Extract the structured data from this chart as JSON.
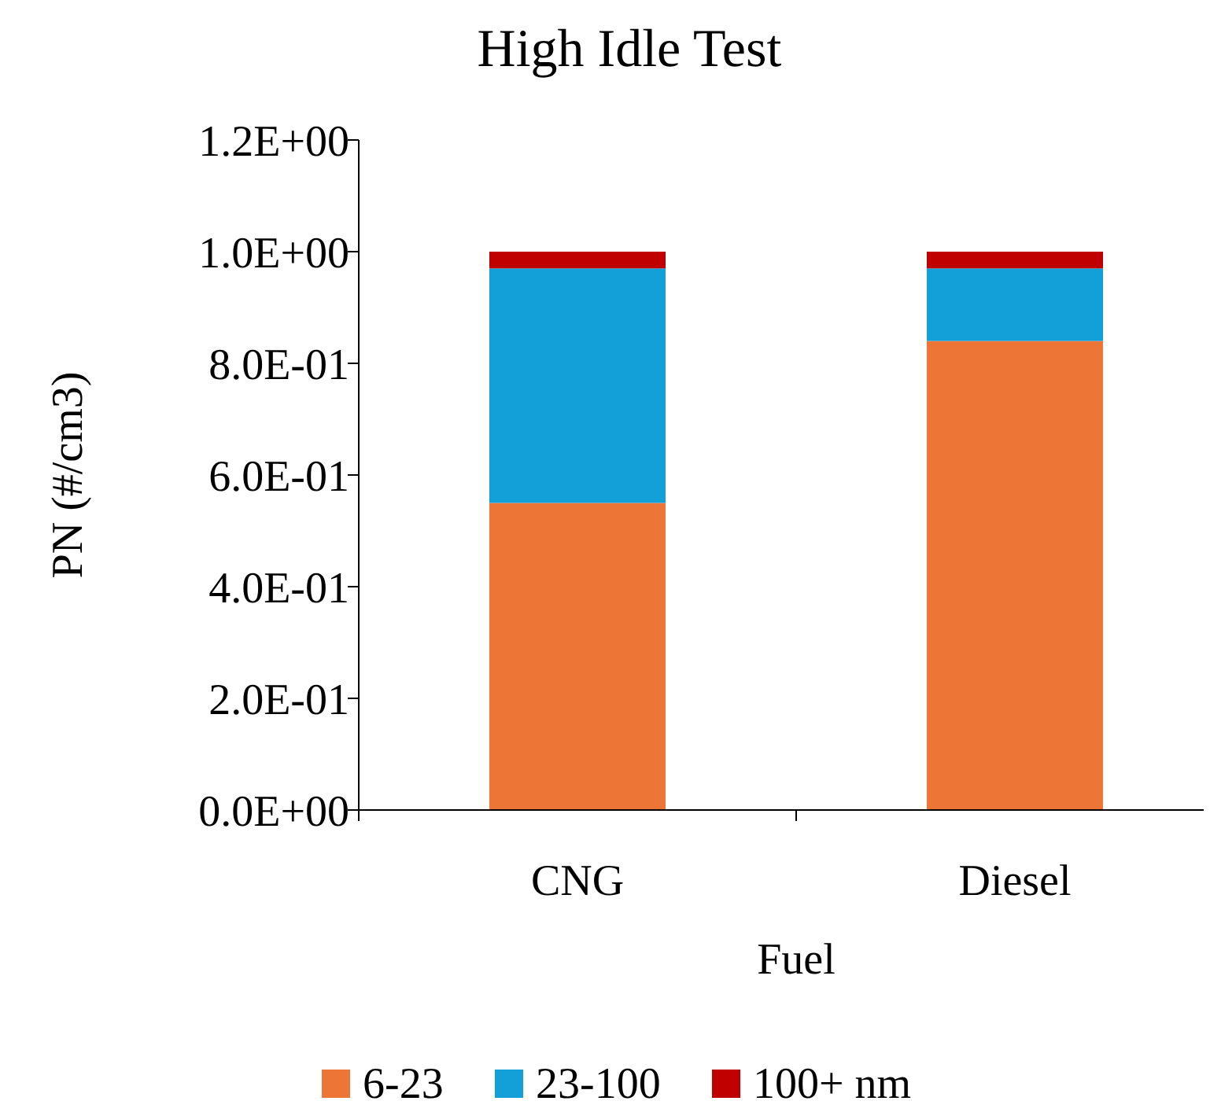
{
  "chart_data": {
    "type": "bar",
    "title": "High Idle Test",
    "xlabel": "Fuel",
    "ylabel": "PN (#/cm3)",
    "categories": [
      "CNG",
      "Diesel"
    ],
    "stacked": true,
    "legend": "bottom",
    "grid": false,
    "series": [
      {
        "name": "6-23",
        "color": "#ed7536",
        "values": [
          0.55,
          0.84
        ]
      },
      {
        "name": "23-100",
        "color": "#13a0d8",
        "values": [
          0.42,
          0.13
        ]
      },
      {
        "name": "100+ nm",
        "color": "#c00000",
        "values": [
          0.03,
          0.03
        ]
      }
    ],
    "ylim": [
      0,
      1.2
    ],
    "yticks": [
      {
        "value": 0,
        "label": "0.0E+00"
      },
      {
        "value": 0.2,
        "label": "2.0E-01"
      },
      {
        "value": 0.4,
        "label": "4.0E-01"
      },
      {
        "value": 0.6,
        "label": "6.0E-01"
      },
      {
        "value": 0.8,
        "label": "8.0E-01"
      },
      {
        "value": 1.0,
        "label": "1.0E+00"
      },
      {
        "value": 1.2,
        "label": "1.2E+00"
      }
    ]
  }
}
